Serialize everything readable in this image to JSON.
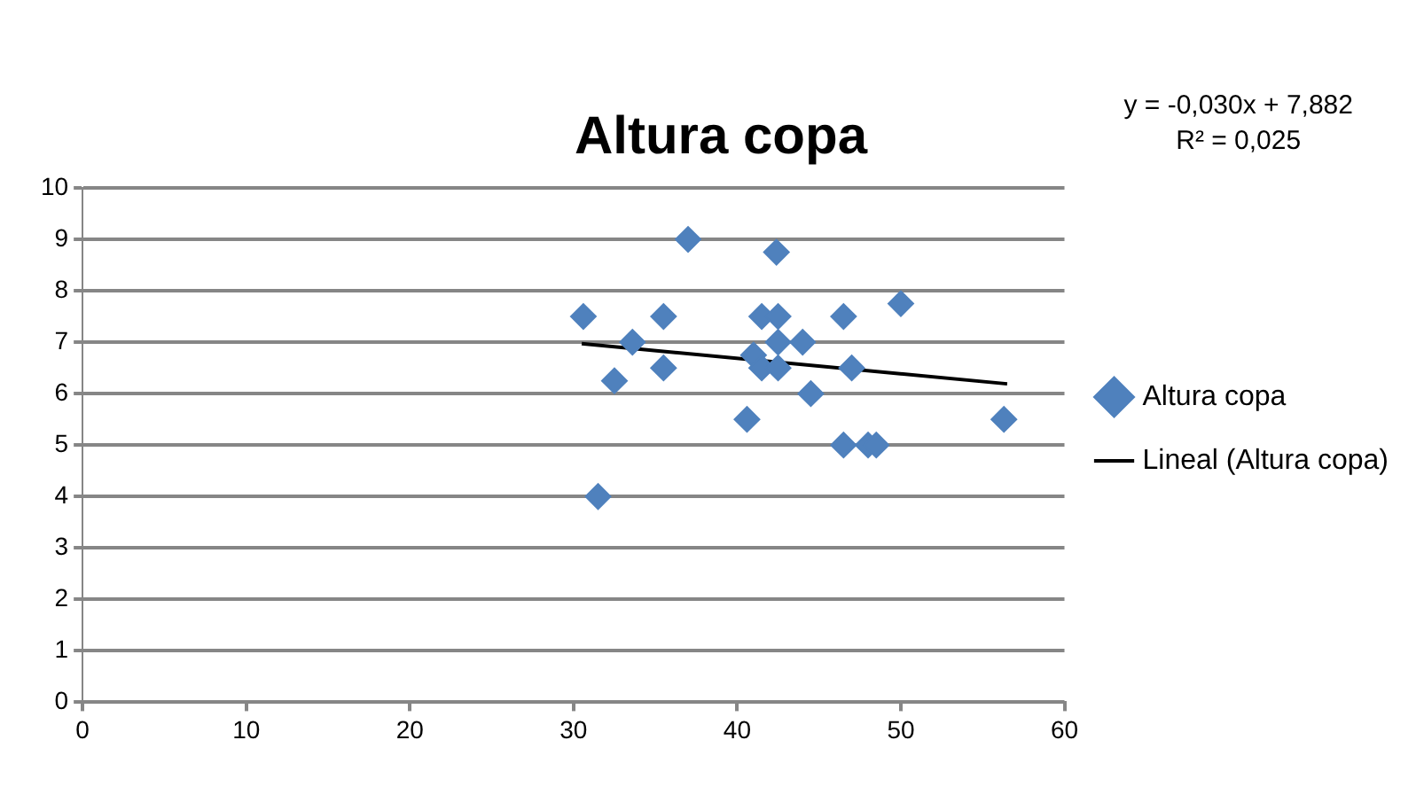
{
  "chart_data": {
    "type": "scatter",
    "title": "Altura copa",
    "annotations": [
      "y = -0,030x + 7,882",
      "R² = 0,025"
    ],
    "xlim": [
      0,
      60
    ],
    "xticks": [
      0,
      10,
      20,
      30,
      40,
      50,
      60
    ],
    "ylim": [
      0,
      10
    ],
    "yticks": [
      0,
      1,
      2,
      3,
      4,
      5,
      6,
      7,
      8,
      9,
      10
    ],
    "grid": "y",
    "legend": "right",
    "marker": "diamond",
    "series": [
      {
        "name": "Altura copa",
        "color": "#4f81bd",
        "x": [
          37.0,
          42.4,
          30.6,
          35.5,
          41.5,
          42.5,
          46.5,
          50.0,
          33.6,
          42.5,
          44.0,
          41.0,
          41.5,
          42.5,
          35.5,
          47.0,
          32.5,
          44.5,
          40.6,
          56.3,
          46.5,
          48.0,
          48.5,
          31.5
        ],
        "values": [
          9.0,
          8.75,
          7.5,
          7.5,
          7.5,
          7.5,
          7.5,
          7.75,
          7.0,
          7.0,
          7.0,
          6.75,
          6.5,
          6.5,
          6.5,
          6.5,
          6.25,
          6.0,
          5.5,
          5.5,
          5.0,
          5.0,
          5.0,
          4.0
        ]
      },
      {
        "name": "Lineal (Altura copa)",
        "type": "line",
        "color": "#000000",
        "line_style": "solid",
        "marker": "none",
        "x": [
          30.5,
          56.5
        ],
        "values": [
          6.97,
          6.19
        ]
      }
    ]
  }
}
